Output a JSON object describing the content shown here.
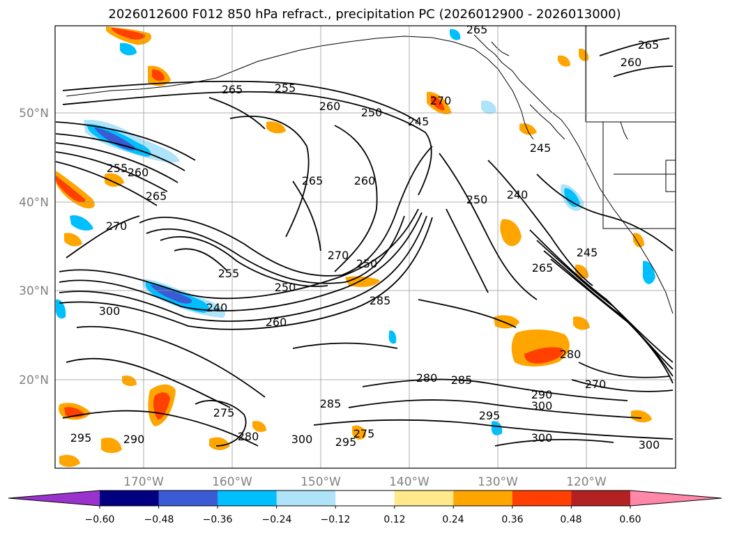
{
  "title": "2026012600 F012 850 hPa refract., precipitation PC (2026012900 - 2026013000)",
  "lat_labels": [
    "50°N",
    "40°N",
    "30°N",
    "20°N"
  ],
  "lon_labels": [
    "170°W",
    "160°W",
    "150°W",
    "140°W",
    "130°W",
    "120°W"
  ],
  "colorbar": {
    "ticks": [
      "−0.60",
      "−0.48",
      "−0.36",
      "−0.24",
      "−0.12",
      "0.12",
      "0.24",
      "0.36",
      "0.48",
      "0.60"
    ],
    "colors": [
      "#9933cc",
      "#000080",
      "#3a5bd4",
      "#00bfff",
      "#aee3fa",
      "#ffffff",
      "#ffe98a",
      "#ffa500",
      "#ff4000",
      "#b22222",
      "#ff88aa"
    ]
  },
  "contour_labels": [
    "265",
    "255",
    "260",
    "250",
    "245",
    "270",
    "265",
    "260",
    "240",
    "250",
    "245",
    "250",
    "260",
    "270",
    "250",
    "285",
    "255",
    "260",
    "265",
    "270",
    "265",
    "240",
    "260",
    "265",
    "255",
    "245",
    "280",
    "290",
    "300",
    "270",
    "280",
    "285",
    "285",
    "295",
    "275",
    "290",
    "295",
    "300",
    "295",
    "300",
    "300",
    "300",
    "265",
    "275",
    "280"
  ]
}
